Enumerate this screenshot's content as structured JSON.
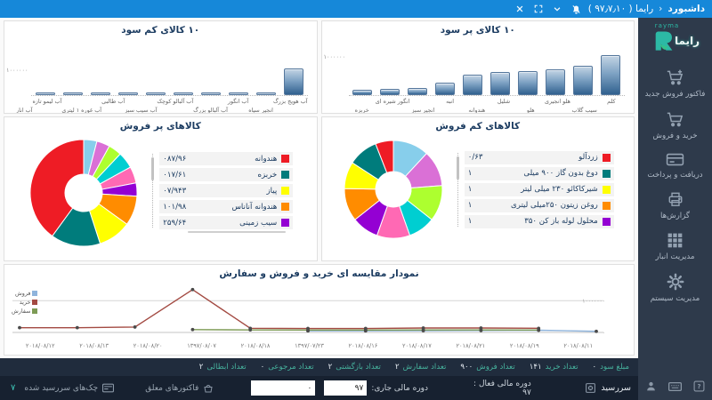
{
  "titlebar": {
    "page_title": "داشبورد",
    "crumb_sep": "‹",
    "app_title": "رایما ( ۹۷٫۷٫۱۰ )"
  },
  "sidebar": {
    "logo_latin": "rayma",
    "logo_fa": "رایما",
    "items": [
      {
        "id": "new-sale-invoice",
        "icon": "cart-plus-icon",
        "label": "فاکتور فروش جدید"
      },
      {
        "id": "buy-and-sell",
        "icon": "cart-icon",
        "label": "خرید و فروش"
      },
      {
        "id": "receive-and-pay",
        "icon": "credit-card-icon",
        "label": "دریافت و پرداخت"
      },
      {
        "id": "reports",
        "icon": "printer-icon",
        "label": "گزارش‌ها"
      },
      {
        "id": "warehouse-management",
        "icon": "grid-icon",
        "label": "مدیریت انبار"
      },
      {
        "id": "system-management",
        "icon": "gear-icon",
        "label": "مدیریت سیستم"
      }
    ],
    "footer_icons": [
      "help-icon",
      "keyboard-icon",
      "user-icon"
    ]
  },
  "stats_bar": [
    {
      "label": "مبلغ سود",
      "value": "۰"
    },
    {
      "label": "تعداد خرید",
      "value": "۱۴۱"
    },
    {
      "label": "تعداد فروش",
      "value": "۹۰۰"
    },
    {
      "label": "تعداد سفارش",
      "value": "۲"
    },
    {
      "label": "تعداد بازگشتی",
      "value": "۲"
    },
    {
      "label": "تعداد مرجوعی",
      "value": "۰"
    },
    {
      "label": "تعداد ابطالی",
      "value": "۲"
    }
  ],
  "status_bar": {
    "deadline_label": "سررسید",
    "active_period_label": "دوره مالی فعال : ۹۷",
    "current_period_label": "دوره مالی جاری:",
    "current_period_value": "۹۷",
    "counter_value": "۰",
    "pending_invoices_label": "فاکتورهای معلق",
    "due_checks_label": "چک‌های سررسید شده",
    "badge": "۷"
  },
  "colors": {
    "titlebar": "#1688d9",
    "sidebar": "#2e3a4b",
    "accent_teal": "#2cb9a5",
    "palette": [
      "#87ceeb",
      "#da70d6",
      "#adff2f",
      "#00ced1",
      "#ff69b4",
      "#9400d3",
      "#ff8c00",
      "#ffff00",
      "#007c7c",
      "#ee1c25"
    ]
  },
  "chart_data": [
    {
      "type": "bar",
      "title": "۱۰ کالای پر سود",
      "categories": [
        "کلم",
        "سیب گلاب",
        "هلو انجیری",
        "هلو",
        "شلیل",
        "هندوانه",
        "انبه",
        "انجیر سبز",
        "انگور شیره ای",
        "خربزه"
      ],
      "values": [
        1000000,
        740000,
        650000,
        600000,
        580000,
        510000,
        320000,
        185000,
        160000,
        140000
      ],
      "ylim": [
        0,
        1200000
      ],
      "axis_label": "۱۰۰۰۰۰۰",
      "order": "right-to-left",
      "grid": false
    },
    {
      "type": "bar",
      "title": "۱۰ کالای کم سود",
      "categories": [
        "آب هویج بزرگ",
        "انجیر سیاه",
        "آب انگور",
        "آب آلبالو بزرگ",
        "آب آلبالو کوچک",
        "آب سیب سبز",
        "آب طالبی",
        "آب غوره ۱ لیتری",
        "آب لیمو تازه",
        "آب انار"
      ],
      "values": [
        1000000,
        20000,
        20000,
        20000,
        20000,
        20000,
        20000,
        20000,
        20000,
        20000
      ],
      "ylim": [
        0,
        1800000
      ],
      "axis_label": "۱۰۰۰۰۰۰",
      "order": "right-to-left",
      "grid": false
    },
    {
      "type": "pie",
      "title": "کالاهای پر فروش",
      "slices": [
        {
          "color": "#87ceeb",
          "value": 4
        },
        {
          "color": "#da70d6",
          "value": 4
        },
        {
          "color": "#adff2f",
          "value": 4
        },
        {
          "color": "#00ced1",
          "value": 5
        },
        {
          "color": "#ff69b4",
          "value": 5
        },
        {
          "color": "#9400d3",
          "value": 4
        },
        {
          "color": "#ff8c00",
          "value": 9
        },
        {
          "color": "#ffff00",
          "value": 10
        },
        {
          "color": "#007c7c",
          "value": 15
        },
        {
          "color": "#ee1c25",
          "value": 40
        }
      ],
      "legend": [
        {
          "name": "هندوانه",
          "value": "۰۸۷/۹۶",
          "color": "#ee1c25"
        },
        {
          "name": "خربزه",
          "value": "۰۱۷/۶۱",
          "color": "#007c7c"
        },
        {
          "name": "پیاز",
          "value": "۰۷/۹۴۳",
          "color": "#ffff00"
        },
        {
          "name": "هندوانه آناناس",
          "value": "۱۰۱/۹۸",
          "color": "#ff8c00"
        },
        {
          "name": "سیب زمینی",
          "value": "۲۵۹/۶۴",
          "color": "#9400d3"
        }
      ],
      "legend_position": "right",
      "donut": true
    },
    {
      "type": "pie",
      "title": "کالاهای کم فروش",
      "slices": [
        {
          "color": "#87ceeb",
          "value": 12
        },
        {
          "color": "#da70d6",
          "value": 12
        },
        {
          "color": "#adff2f",
          "value": 12
        },
        {
          "color": "#00ced1",
          "value": 9
        },
        {
          "color": "#ff69b4",
          "value": 11
        },
        {
          "color": "#9400d3",
          "value": 9
        },
        {
          "color": "#ff8c00",
          "value": 11
        },
        {
          "color": "#ffff00",
          "value": 9
        },
        {
          "color": "#007c7c",
          "value": 10
        },
        {
          "color": "#ee1c25",
          "value": 6
        }
      ],
      "legend": [
        {
          "name": "زردآلو",
          "value": "۰/۶۳",
          "color": "#ee1c25"
        },
        {
          "name": "دوغ بدون گاز ۹۰۰ میلی",
          "value": "۱",
          "color": "#007c7c"
        },
        {
          "name": "شیرکاکائو ۲۳۰ میلی لیتر",
          "value": "۱",
          "color": "#ffff00"
        },
        {
          "name": "روغن زیتون ۲۵۰میلی لیتری",
          "value": "۱",
          "color": "#ff8c00"
        },
        {
          "name": "محلول لوله باز کن ۳۵۰",
          "value": "۱",
          "color": "#9400d3"
        }
      ],
      "legend_position": "right",
      "donut": true
    },
    {
      "type": "line",
      "title": "نمودار مقایسه ای خرید و فروش و سفارش",
      "x": [
        "۲۰۱۸/۰۸/۱۲",
        "۲۰۱۸/۰۸/۱۳",
        "۲۰۱۸/۰۸/۲۰",
        "۱۳۹۷/۰۸/۰۷",
        "۲۰۱۸/۰۸/۱۸",
        "۱۳۹۷/۰۷/۲۳",
        "۲۰۱۸/۰۸/۱۶",
        "۲۰۱۸/۰۸/۱۷",
        "۲۰۱۸/۰۸/۲۱",
        "۲۰۱۸/۰۸/۱۹",
        "۲۰۱۸/۰۸/۱۱"
      ],
      "series": [
        {
          "name": "فروش",
          "color": "#8fb4dc",
          "values": [
            null,
            null,
            null,
            null,
            null,
            500000,
            500000,
            550000,
            600000,
            700000,
            350000
          ]
        },
        {
          "name": "خرید",
          "color": "#a34a42",
          "values": [
            1500000,
            1500000,
            1700000,
            13500000,
            1300000,
            1250000,
            1250000,
            1400000,
            1400000,
            1300000,
            null
          ]
        },
        {
          "name": "سفارش",
          "color": "#7d9b55",
          "values": [
            null,
            null,
            null,
            900000,
            800000,
            750000,
            750000,
            800000,
            800000,
            750000,
            null
          ]
        }
      ],
      "ylim": [
        0,
        14000000
      ],
      "gridline_value": 10000000,
      "gridline_label": "۱۰۰۰۰۰۰۰",
      "baseline_label": "۰",
      "legend_position": "left",
      "grid": true
    }
  ]
}
